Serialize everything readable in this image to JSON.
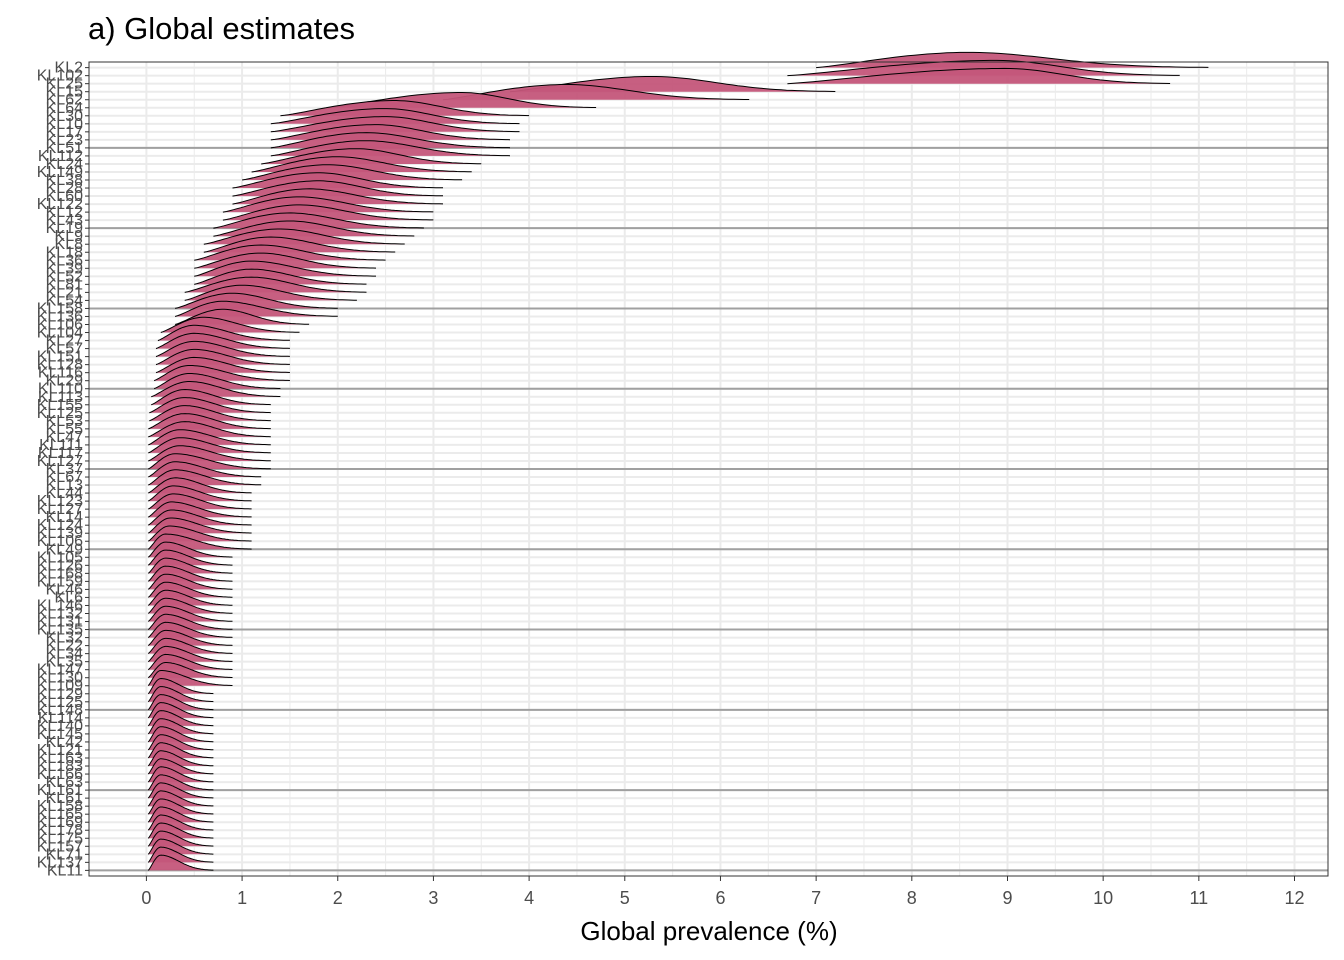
{
  "chart_data": {
    "type": "ridgeline",
    "title": "a) Global estimates",
    "xlabel": "Global prevalence (%)",
    "ylabel": "",
    "xlim": [
      -0.6,
      12.35
    ],
    "x_ticks": [
      0,
      1,
      2,
      3,
      4,
      5,
      6,
      7,
      8,
      9,
      10,
      11,
      12
    ],
    "grid": true,
    "legend": "none",
    "fill_color": "#c4567a",
    "line_color": "#000000",
    "separator_every": 10,
    "categories": [
      "KL2",
      "KL102",
      "KL25",
      "KL15",
      "KL62",
      "KL64",
      "KL30",
      "KL10",
      "KL17",
      "KL23",
      "KL51",
      "KL112",
      "KL24",
      "KL149",
      "KL38",
      "KL28",
      "KL60",
      "KL122",
      "KL12",
      "KL43",
      "KL19",
      "KL9",
      "KL8",
      "KL18",
      "KL36",
      "KL39",
      "KL52",
      "KL81",
      "KL21",
      "KL54",
      "KL158",
      "KL136",
      "KL106",
      "KL104",
      "KL27",
      "KL57",
      "KL151",
      "KL128",
      "KL116",
      "KL29",
      "KL110",
      "KL113",
      "KL155",
      "KL125",
      "KL53",
      "KL55",
      "KL47",
      "KL111",
      "KL117",
      "KL127",
      "KL37",
      "KL67",
      "KL13",
      "KL44",
      "KL123",
      "KL127",
      "KL14",
      "KL124",
      "KL139",
      "KL106",
      "KL49",
      "KL105",
      "KL126",
      "KL168",
      "KL159",
      "KL46",
      "KL6",
      "KL146",
      "KL132",
      "KL131",
      "KL135",
      "KL32",
      "KL22",
      "KL34",
      "KL35",
      "KL147",
      "KL130",
      "KL109",
      "KL129",
      "KL125",
      "KL148",
      "KL114",
      "KL140",
      "KL145",
      "KL42",
      "KL121",
      "KL163",
      "KL183",
      "KL166",
      "KL63",
      "KL161",
      "KL61",
      "KL158",
      "KL165",
      "KL169",
      "KL178",
      "KL175",
      "KL157",
      "KL71",
      "KL137",
      "KL11"
    ],
    "series": [
      {
        "peak": 8.6,
        "lo": 7.0,
        "hi": 11.1
      },
      {
        "peak": 8.9,
        "lo": 6.7,
        "hi": 10.8
      },
      {
        "peak": 9.0,
        "lo": 6.7,
        "hi": 10.7
      },
      {
        "peak": 5.3,
        "lo": 3.8,
        "hi": 7.2
      },
      {
        "peak": 4.4,
        "lo": 3.1,
        "hi": 6.3
      },
      {
        "peak": 3.3,
        "lo": 1.9,
        "hi": 4.7
      },
      {
        "peak": 2.6,
        "lo": 1.4,
        "hi": 4.0
      },
      {
        "peak": 2.5,
        "lo": 1.3,
        "hi": 3.9
      },
      {
        "peak": 2.5,
        "lo": 1.3,
        "hi": 3.9
      },
      {
        "peak": 2.4,
        "lo": 1.3,
        "hi": 3.8
      },
      {
        "peak": 2.3,
        "lo": 1.3,
        "hi": 3.8
      },
      {
        "peak": 2.3,
        "lo": 1.3,
        "hi": 3.8
      },
      {
        "peak": 2.2,
        "lo": 1.2,
        "hi": 3.5
      },
      {
        "peak": 2.0,
        "lo": 1.1,
        "hi": 3.4
      },
      {
        "peak": 1.9,
        "lo": 1.0,
        "hi": 3.3
      },
      {
        "peak": 1.8,
        "lo": 0.9,
        "hi": 3.1
      },
      {
        "peak": 1.8,
        "lo": 0.9,
        "hi": 3.1
      },
      {
        "peak": 1.7,
        "lo": 0.9,
        "hi": 3.1
      },
      {
        "peak": 1.6,
        "lo": 0.8,
        "hi": 3.0
      },
      {
        "peak": 1.6,
        "lo": 0.8,
        "hi": 3.0
      },
      {
        "peak": 1.5,
        "lo": 0.7,
        "hi": 2.9
      },
      {
        "peak": 1.5,
        "lo": 0.7,
        "hi": 2.8
      },
      {
        "peak": 1.4,
        "lo": 0.6,
        "hi": 2.7
      },
      {
        "peak": 1.3,
        "lo": 0.6,
        "hi": 2.6
      },
      {
        "peak": 1.2,
        "lo": 0.5,
        "hi": 2.5
      },
      {
        "peak": 1.2,
        "lo": 0.5,
        "hi": 2.4
      },
      {
        "peak": 1.1,
        "lo": 0.5,
        "hi": 2.4
      },
      {
        "peak": 1.1,
        "lo": 0.5,
        "hi": 2.3
      },
      {
        "peak": 1.1,
        "lo": 0.4,
        "hi": 2.3
      },
      {
        "peak": 1.0,
        "lo": 0.4,
        "hi": 2.2
      },
      {
        "peak": 0.9,
        "lo": 0.3,
        "hi": 2.0
      },
      {
        "peak": 0.8,
        "lo": 0.3,
        "hi": 2.0
      },
      {
        "peak": 0.8,
        "lo": 0.3,
        "hi": 1.7
      },
      {
        "peak": 0.6,
        "lo": 0.15,
        "hi": 1.6
      },
      {
        "peak": 0.5,
        "lo": 0.12,
        "hi": 1.5
      },
      {
        "peak": 0.5,
        "lo": 0.1,
        "hi": 1.5
      },
      {
        "peak": 0.5,
        "lo": 0.1,
        "hi": 1.5
      },
      {
        "peak": 0.5,
        "lo": 0.1,
        "hi": 1.5
      },
      {
        "peak": 0.5,
        "lo": 0.1,
        "hi": 1.5
      },
      {
        "peak": 0.45,
        "lo": 0.08,
        "hi": 1.5
      },
      {
        "peak": 0.45,
        "lo": 0.08,
        "hi": 1.4
      },
      {
        "peak": 0.45,
        "lo": 0.05,
        "hi": 1.4
      },
      {
        "peak": 0.4,
        "lo": 0.05,
        "hi": 1.3
      },
      {
        "peak": 0.4,
        "lo": 0.03,
        "hi": 1.3
      },
      {
        "peak": 0.4,
        "lo": 0.03,
        "hi": 1.3
      },
      {
        "peak": 0.4,
        "lo": 0.02,
        "hi": 1.3
      },
      {
        "peak": 0.4,
        "lo": 0.02,
        "hi": 1.3
      },
      {
        "peak": 0.35,
        "lo": 0.02,
        "hi": 1.3
      },
      {
        "peak": 0.35,
        "lo": 0.02,
        "hi": 1.3
      },
      {
        "peak": 0.35,
        "lo": 0.02,
        "hi": 1.3
      },
      {
        "peak": 0.3,
        "lo": 0.02,
        "hi": 1.3
      },
      {
        "peak": 0.3,
        "lo": 0.02,
        "hi": 1.2
      },
      {
        "peak": 0.3,
        "lo": 0.02,
        "hi": 1.2
      },
      {
        "peak": 0.3,
        "lo": 0.02,
        "hi": 1.1
      },
      {
        "peak": 0.28,
        "lo": 0.02,
        "hi": 1.1
      },
      {
        "peak": 0.28,
        "lo": 0.02,
        "hi": 1.1
      },
      {
        "peak": 0.26,
        "lo": 0.02,
        "hi": 1.1
      },
      {
        "peak": 0.26,
        "lo": 0.02,
        "hi": 1.1
      },
      {
        "peak": 0.25,
        "lo": 0.02,
        "hi": 1.1
      },
      {
        "peak": 0.24,
        "lo": 0.02,
        "hi": 1.1
      },
      {
        "peak": 0.2,
        "lo": 0.02,
        "hi": 1.1
      },
      {
        "peak": 0.2,
        "lo": 0.02,
        "hi": 0.9
      },
      {
        "peak": 0.2,
        "lo": 0.02,
        "hi": 0.9
      },
      {
        "peak": 0.2,
        "lo": 0.02,
        "hi": 0.9
      },
      {
        "peak": 0.2,
        "lo": 0.02,
        "hi": 0.9
      },
      {
        "peak": 0.2,
        "lo": 0.02,
        "hi": 0.9
      },
      {
        "peak": 0.2,
        "lo": 0.02,
        "hi": 0.9
      },
      {
        "peak": 0.2,
        "lo": 0.02,
        "hi": 0.9
      },
      {
        "peak": 0.2,
        "lo": 0.02,
        "hi": 0.9
      },
      {
        "peak": 0.2,
        "lo": 0.02,
        "hi": 0.9
      },
      {
        "peak": 0.2,
        "lo": 0.02,
        "hi": 0.9
      },
      {
        "peak": 0.2,
        "lo": 0.02,
        "hi": 0.9
      },
      {
        "peak": 0.2,
        "lo": 0.02,
        "hi": 0.9
      },
      {
        "peak": 0.2,
        "lo": 0.02,
        "hi": 0.9
      },
      {
        "peak": 0.2,
        "lo": 0.02,
        "hi": 0.9
      },
      {
        "peak": 0.2,
        "lo": 0.02,
        "hi": 0.9
      },
      {
        "peak": 0.2,
        "lo": 0.02,
        "hi": 0.9
      },
      {
        "peak": 0.15,
        "lo": 0.02,
        "hi": 0.9
      },
      {
        "peak": 0.15,
        "lo": 0.02,
        "hi": 0.7
      },
      {
        "peak": 0.15,
        "lo": 0.02,
        "hi": 0.7
      },
      {
        "peak": 0.15,
        "lo": 0.02,
        "hi": 0.7
      },
      {
        "peak": 0.15,
        "lo": 0.02,
        "hi": 0.7
      },
      {
        "peak": 0.15,
        "lo": 0.02,
        "hi": 0.7
      },
      {
        "peak": 0.15,
        "lo": 0.02,
        "hi": 0.7
      },
      {
        "peak": 0.15,
        "lo": 0.02,
        "hi": 0.7
      },
      {
        "peak": 0.15,
        "lo": 0.02,
        "hi": 0.7
      },
      {
        "peak": 0.15,
        "lo": 0.02,
        "hi": 0.7
      },
      {
        "peak": 0.15,
        "lo": 0.02,
        "hi": 0.7
      },
      {
        "peak": 0.15,
        "lo": 0.02,
        "hi": 0.7
      },
      {
        "peak": 0.15,
        "lo": 0.02,
        "hi": 0.7
      },
      {
        "peak": 0.15,
        "lo": 0.02,
        "hi": 0.7
      },
      {
        "peak": 0.15,
        "lo": 0.02,
        "hi": 0.7
      },
      {
        "peak": 0.15,
        "lo": 0.02,
        "hi": 0.7
      },
      {
        "peak": 0.15,
        "lo": 0.02,
        "hi": 0.7
      },
      {
        "peak": 0.15,
        "lo": 0.02,
        "hi": 0.7
      },
      {
        "peak": 0.15,
        "lo": 0.02,
        "hi": 0.7
      },
      {
        "peak": 0.15,
        "lo": 0.02,
        "hi": 0.7
      },
      {
        "peak": 0.15,
        "lo": 0.02,
        "hi": 0.7
      },
      {
        "peak": 0.15,
        "lo": 0.02,
        "hi": 0.7
      },
      {
        "peak": 0.15,
        "lo": 0.02,
        "hi": 0.7
      },
      {
        "peak": 0.15,
        "lo": 0.02,
        "hi": 0.7
      }
    ]
  }
}
